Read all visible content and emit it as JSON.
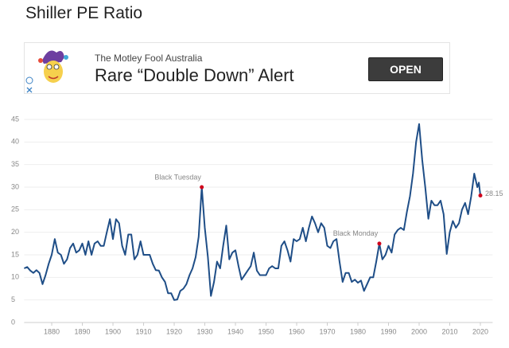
{
  "header": {
    "title": "Shiller PE Ratio"
  },
  "ad": {
    "source": "The Motley Fool Australia",
    "headline": "Rare “Double Down” Alert",
    "button": "OPEN"
  },
  "chart_data": {
    "type": "line",
    "x": [
      1871,
      1872,
      1873,
      1874,
      1875,
      1876,
      1877,
      1878,
      1879,
      1880,
      1881,
      1882,
      1883,
      1884,
      1885,
      1886,
      1887,
      1888,
      1889,
      1890,
      1891,
      1892,
      1893,
      1894,
      1895,
      1896,
      1897,
      1898,
      1899,
      1900,
      1901,
      1902,
      1903,
      1904,
      1905,
      1906,
      1907,
      1908,
      1909,
      1910,
      1911,
      1912,
      1913,
      1914,
      1915,
      1916,
      1917,
      1918,
      1919,
      1920,
      1921,
      1922,
      1923,
      1924,
      1925,
      1926,
      1927,
      1928,
      1929,
      1930,
      1931,
      1932,
      1933,
      1934,
      1935,
      1936,
      1937,
      1938,
      1939,
      1940,
      1941,
      1942,
      1943,
      1944,
      1945,
      1946,
      1947,
      1948,
      1949,
      1950,
      1951,
      1952,
      1953,
      1954,
      1955,
      1956,
      1957,
      1958,
      1959,
      1960,
      1961,
      1962,
      1963,
      1964,
      1965,
      1966,
      1967,
      1968,
      1969,
      1970,
      1971,
      1972,
      1973,
      1974,
      1975,
      1976,
      1977,
      1978,
      1979,
      1980,
      1981,
      1982,
      1983,
      1984,
      1985,
      1986,
      1987,
      1988,
      1989,
      1990,
      1991,
      1992,
      1993,
      1994,
      1995,
      1996,
      1997,
      1998,
      1999,
      2000,
      2001,
      2002,
      2003,
      2004,
      2005,
      2006,
      2007,
      2008,
      2009,
      2010,
      2011,
      2012,
      2013,
      2014,
      2015,
      2016,
      2017,
      2018,
      2019,
      2019.5,
      2020
    ],
    "series": [
      {
        "color": "#1f4e87",
        "values": [
          12.0,
          12.3,
          11.5,
          11.0,
          11.6,
          11.0,
          8.5,
          10.5,
          13.0,
          15.0,
          18.5,
          15.5,
          15.0,
          13.0,
          14.0,
          16.5,
          17.5,
          15.5,
          16.0,
          17.5,
          15.0,
          18.0,
          15.0,
          17.5,
          18.0,
          17.0,
          17.0,
          20.0,
          22.9,
          18.5,
          22.9,
          22.0,
          17.0,
          15.0,
          19.5,
          19.5,
          14.0,
          15.0,
          18.0,
          15.0,
          15.0,
          15.0,
          13.0,
          11.6,
          11.5,
          10.0,
          9.0,
          6.5,
          6.5,
          5.0,
          5.1,
          7.0,
          7.5,
          8.5,
          10.5,
          12.0,
          14.5,
          19.0,
          30.0,
          21.0,
          14.5,
          5.9,
          9.0,
          13.5,
          12.0,
          17.0,
          21.5,
          14.0,
          15.5,
          16.0,
          12.5,
          9.5,
          10.5,
          11.5,
          12.5,
          15.5,
          11.5,
          10.5,
          10.5,
          10.5,
          12.0,
          12.5,
          12.0,
          12.0,
          17.0,
          18.0,
          16.0,
          13.5,
          18.5,
          18.0,
          18.5,
          21.0,
          18.0,
          21.0,
          23.5,
          22.0,
          20.0,
          22.0,
          21.0,
          17.0,
          16.5,
          18.0,
          18.5,
          13.5,
          9.0,
          11.0,
          11.0,
          9.0,
          9.5,
          8.8,
          9.3,
          7.0,
          8.5,
          10.0,
          10.0,
          13.5,
          17.5,
          14.0,
          15.0,
          17.0,
          15.5,
          19.5,
          20.5,
          21.0,
          20.5,
          24.5,
          28.0,
          33.0,
          40.0,
          44.0,
          36.0,
          30.0,
          23.0,
          27.0,
          26.0,
          26.0,
          27.0,
          24.0,
          15.2,
          20.0,
          22.5,
          21.0,
          22.0,
          25.0,
          26.5,
          24.0,
          28.0,
          33.0,
          30.0,
          31.0,
          28.15
        ]
      }
    ],
    "annotations": [
      {
        "label": "Black Tuesday",
        "x": 1929,
        "y": 30.0
      },
      {
        "label": "Black Monday",
        "x": 1987,
        "y": 17.5
      }
    ],
    "marker_color": "#d0021b",
    "xlim": [
      1871,
      2024
    ],
    "ylim": [
      0,
      45
    ],
    "xticks": [
      1880,
      1890,
      1900,
      1910,
      1920,
      1930,
      1940,
      1950,
      1960,
      1970,
      1980,
      1990,
      2000,
      2010,
      2020
    ],
    "yticks": [
      0,
      5,
      10,
      15,
      20,
      25,
      30,
      35,
      40,
      45
    ],
    "grid": true
  }
}
